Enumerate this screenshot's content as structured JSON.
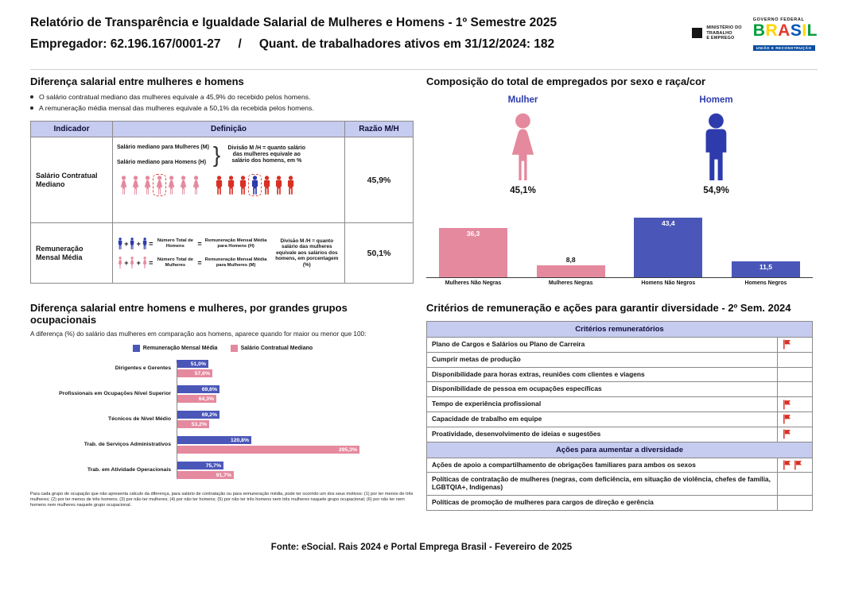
{
  "header": {
    "title": "Relatório de Transparência e Igualdade Salarial de Mulheres e Homens - 1º Semestre 2025",
    "employer": "Empregador: 62.196.167/0001-27",
    "separator": "/",
    "workers": "Quant. de trabalhadores ativos em 31/12/2024: 182",
    "logo_mte": "MINISTÉRIO DO\nTRABALHO\nE EMPREGO",
    "logo_gov": "GOVERNO FEDERAL",
    "logo_brasil": "BRASIL",
    "logo_brasil_colors": [
      "#009c3b",
      "#ffd400",
      "#e03c31",
      "#0057b8",
      "#ffd400",
      "#009c3b"
    ],
    "logo_slogan": "UNIÃO E RECONSTRUÇÃO"
  },
  "salary_diff": {
    "title": "Diferença salarial entre mulheres e homens",
    "bullets": [
      "O salário contratual mediano das mulheres equivale a 45,9% do recebido pelos homens.",
      "A remuneração média mensal das mulheres equivale a 50,1% da recebida pelos homens."
    ],
    "table": {
      "headers": [
        "Indicador",
        "Definição",
        "Razão M/H"
      ],
      "rows": [
        {
          "indicator": "Salário Contratual Mediano",
          "label_women": "Salário mediano para Mulheres (M)",
          "label_men": "Salário mediano para Homens (H)",
          "note": "Divisão M /H = quanto salário das mulheres equivale ao salário dos homens, em %",
          "ratio": "45,9%",
          "pictogram": {
            "female_count": 7,
            "male_count": 7,
            "female_box_index": 3,
            "male_highlight_index": 3
          }
        },
        {
          "indicator": "Remuneração Mensal Média",
          "men_total_label": "Número Total de Homens",
          "men_avg_label": "Remuneração Mensal Média para Homens (H)",
          "women_total_label": "Número Total de Mulheres",
          "women_avg_label": "Remuneração Mensal Média para Mulheres (M)",
          "note": "Divisão M /H = quanto salário das mulheres equivale aos salários dos homens, em porcentagem (%)",
          "ratio": "50,1%",
          "icons_per_formula": 3
        }
      ]
    }
  },
  "composition": {
    "title": "Composição do total de empregados por sexo e raça/cor",
    "female_label": "Mulher",
    "male_label": "Homem",
    "female_pct": "45,1%",
    "male_pct": "54,9%",
    "chart_data": {
      "type": "bar",
      "categories": [
        "Mulheres Não Negras",
        "Mulheres Negras",
        "Homens Não Negros",
        "Homens Negros"
      ],
      "values": [
        36.3,
        8.8,
        43.4,
        11.5
      ],
      "labels": [
        "36,3",
        "8,8",
        "43,4",
        "11,5"
      ],
      "colors": [
        "#e5899e",
        "#e5899e",
        "#4a57b8",
        "#4a57b8"
      ],
      "title": "Composição do total de empregados por sexo e raça/cor",
      "xlabel": "",
      "ylabel": "",
      "ylim": [
        0,
        50
      ],
      "grid": false,
      "legend": "none"
    }
  },
  "occupational": {
    "title": "Diferença salarial entre homens e mulheres, por grandes grupos ocupacionais",
    "subtitle": "A diferença (%) do salário das mulheres em comparação aos homens, aparece quando for maior ou menor que 100:",
    "legend": [
      "Remuneração Mensal Média",
      "Salário Contratual Mediano"
    ],
    "chart_data": {
      "type": "bar",
      "orientation": "horizontal",
      "categories": [
        "Dirigentes e Gerentes",
        "Profissionais em Ocupações Nível Superior",
        "Técnicos de Nível Médio",
        "Trab. de Serviços Administrativos",
        "Trab. em Atividade Operacionais"
      ],
      "series": [
        {
          "name": "Remuneração Mensal Média",
          "color": "#4a57b8",
          "values": [
            51.0,
            69.6,
            69.2,
            120.8,
            75.7
          ],
          "labels": [
            "51,0%",
            "69,6%",
            "69,2%",
            "120,8%",
            "75,7%"
          ]
        },
        {
          "name": "Salário Contratual Mediano",
          "color": "#e5899e",
          "values": [
            57.6,
            64.3,
            53.2,
            295.3,
            91.7
          ],
          "labels": [
            "57,6%",
            "64,3%",
            "53,2%",
            "295,3%",
            "91,7%"
          ]
        }
      ],
      "title": "Diferença salarial entre homens e mulheres, por grandes grupos ocupacionais",
      "xlim": [
        0,
        310
      ],
      "grid": false,
      "legend_position": "top"
    },
    "footnote": "Para cada grupo de ocupação que não apresenta cálculo da diferença, para salário de contratação ou para remuneração média, pode ter ocorrido um dos seus motivos: (1) por ter menos de três mulheres; (2) por ter menos de três homens; (3) por não ter mulheres; (4) por não ter homens; (5) por não ter três homens nem três mulheres naquele grupo ocupacional; (6) por não ter nem homens nem mulheres naquele grupo ocupacional."
  },
  "criteria": {
    "title": "Critérios de remuneração e ações para garantir diversidade - 2º Sem. 2024",
    "sections": [
      {
        "header": "Critérios remuneratórios",
        "rows": [
          {
            "label": "Plano de Cargos e Salários ou Plano de Carreira",
            "flags": 1
          },
          {
            "label": "Cumprir metas de produção",
            "flags": 0
          },
          {
            "label": "Disponibilidade para horas extras, reuniões com clientes e viagens",
            "flags": 0
          },
          {
            "label": "Disponibilidade de pessoa em ocupações específicas",
            "flags": 0
          },
          {
            "label": "Tempo de experiência profissional",
            "flags": 1
          },
          {
            "label": "Capacidade de trabalho em equipe",
            "flags": 1
          },
          {
            "label": "Proatividade, desenvolvimento de ideias e sugestões",
            "flags": 1
          }
        ]
      },
      {
        "header": "Ações para aumentar a diversidade",
        "rows": [
          {
            "label": "Ações de apoio a compartilhamento de obrigações familiares para ambos os sexos",
            "flags": 2
          },
          {
            "label": "Políticas de contratação de mulheres (negras, com deficiência, em situação de violência, chefes de família, LGBTQIA+, Indígenas)",
            "flags": 0
          },
          {
            "label": "Políticas de promoção de mulheres para cargos de direção e gerência",
            "flags": 0
          }
        ]
      }
    ]
  },
  "footer": {
    "source": "Fonte: eSocial. Rais 2024 e Portal Emprega Brasil - Fevereiro de 2025"
  },
  "colors": {
    "female_pink": "#e5899e",
    "male_blue": "#4a57b8",
    "deep_blue": "#2e3bad",
    "figure_red": "#d93025",
    "header_lavender": "#c6cbf0"
  }
}
